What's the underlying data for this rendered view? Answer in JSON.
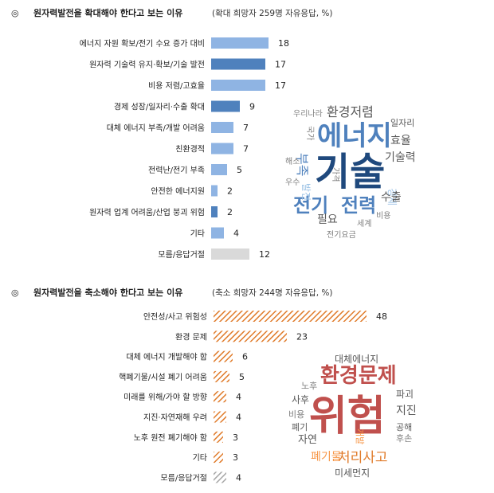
{
  "chart_data": [
    {
      "type": "bar",
      "bullet": "◎",
      "title": "원자력발전을 확대해야 한다고 보는 이유",
      "subtitle": "(확대 희망자 259명 자유응답, %)",
      "categories": [
        "에너지 자원 확보/전기 수요 증가 대비",
        "원자력 기술력 유지·확보/기술 발전",
        "비용 저렴/고효율",
        "경제 성장/일자리·수출 확대",
        "대체 에너지 부족/개발 어려움",
        "친환경적",
        "전력난/전기 부족",
        "안전한 에너지원",
        "원자력 업계 어려움/산업 붕괴 위험",
        "기타",
        "모름/응답거절"
      ],
      "values": [
        18,
        17,
        17,
        9,
        7,
        7,
        5,
        2,
        2,
        4,
        12
      ],
      "bar_colors": [
        "#8fb4e3",
        "#4f81bd",
        "#8fb4e3",
        "#4f81bd",
        "#8fb4e3",
        "#8fb4e3",
        "#8fb4e3",
        "#8fb4e3",
        "#4f81bd",
        "#8fb4e3",
        "#d9d9d9"
      ],
      "pattern": "solid",
      "max": 50,
      "word_cloud": [
        {
          "text": "에너지",
          "color": "#4f81bd"
        },
        {
          "text": "기술",
          "color": "#1f497d"
        },
        {
          "text": "전기",
          "color": "#4f81bd"
        },
        {
          "text": "전력",
          "color": "#4f81bd"
        },
        {
          "text": "환경저렴",
          "color": "#595959"
        },
        {
          "text": "기술력",
          "color": "#595959"
        },
        {
          "text": "효율",
          "color": "#595959"
        },
        {
          "text": "일자리",
          "color": "#595959"
        },
        {
          "text": "우리나라",
          "color": "#7f7f7f"
        },
        {
          "text": "경제",
          "color": "#9dc3e6"
        },
        {
          "text": "수출",
          "color": "#595959"
        },
        {
          "text": "필요",
          "color": "#595959"
        },
        {
          "text": "비용",
          "color": "#7f7f7f"
        },
        {
          "text": "세계",
          "color": "#7f7f7f"
        },
        {
          "text": "전기요금",
          "color": "#7f7f7f"
        },
        {
          "text": "해소",
          "color": "#7f7f7f"
        },
        {
          "text": "부족",
          "color": "#4f81bd"
        },
        {
          "text": "우수",
          "color": "#7f7f7f"
        },
        {
          "text": "발전",
          "color": "#9dc3e6"
        },
        {
          "text": "가격",
          "color": "#7f7f7f"
        },
        {
          "text": "국가",
          "color": "#7f7f7f"
        }
      ]
    },
    {
      "type": "bar",
      "bullet": "◎",
      "title": "원자력발전을 축소해야 한다고 보는 이유",
      "subtitle": "(축소 희망자 244명 자유응답, %)",
      "categories": [
        "안전성/사고 위험성",
        "환경 문제",
        "대체 에너지 개발해야 함",
        "핵폐기물/시설 폐기 어려움",
        "미래를 위해/가야 할 방향",
        "지진·자연재해 우려",
        "노후 원전 폐기해야 함",
        "기타",
        "모름/응답거절"
      ],
      "values": [
        48,
        23,
        6,
        5,
        4,
        4,
        3,
        3,
        4
      ],
      "bar_colors": [
        "#e07b2a",
        "#e07b2a",
        "#e07b2a",
        "#e07b2a",
        "#e07b2a",
        "#e07b2a",
        "#e07b2a",
        "#e07b2a",
        "#a6a6a6"
      ],
      "pattern": "hatch",
      "max": 50,
      "word_cloud": [
        {
          "text": "위험",
          "color": "#c0504d"
        },
        {
          "text": "환경문제",
          "color": "#c0504d"
        },
        {
          "text": "대체에너지",
          "color": "#595959"
        },
        {
          "text": "처리사고",
          "color": "#e07b2a"
        },
        {
          "text": "폐기물",
          "color": "#f79646"
        },
        {
          "text": "파괴",
          "color": "#595959"
        },
        {
          "text": "지진",
          "color": "#595959"
        },
        {
          "text": "공해",
          "color": "#595959"
        },
        {
          "text": "후손",
          "color": "#7f7f7f"
        },
        {
          "text": "사후",
          "color": "#595959"
        },
        {
          "text": "노후",
          "color": "#7f7f7f"
        },
        {
          "text": "비용",
          "color": "#7f7f7f"
        },
        {
          "text": "폐기",
          "color": "#595959"
        },
        {
          "text": "자연",
          "color": "#595959"
        },
        {
          "text": "미세먼지",
          "color": "#595959"
        },
        {
          "text": "개발",
          "color": "#f79646"
        }
      ]
    }
  ]
}
